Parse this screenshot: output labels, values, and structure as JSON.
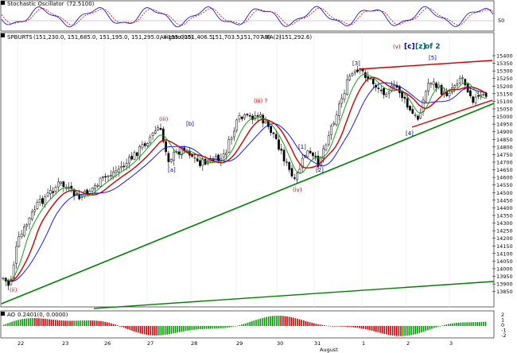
{
  "panels": {
    "stoch": {
      "title": "Stochastic Oscillator",
      "value": "(72.5100)",
      "levels": [
        "50"
      ],
      "value_color": "#cc0000"
    },
    "price": {
      "symbol": "SPBURTS",
      "ohlc": "(151,230.0, 151,685.0, 151,195.0, 151,295.0, +155.000)",
      "alligator_label": "Alligato",
      "alligator_values": [
        "(151,406.5,",
        "151,703.5,",
        "151,707.3)"
      ],
      "ama_label": "AMA(2)",
      "ama_value": "(151,292.6)",
      "top_annotation": {
        "v": "(v)",
        "c": "[c]",
        "z": "[z]",
        "of2": "of 2"
      }
    },
    "ao": {
      "title": "AO",
      "values": "0.2401(0, 0.0000)"
    }
  },
  "wave_labels": [
    {
      "text": "(ii)",
      "color": "#cc0000"
    },
    {
      "text": "(iii)",
      "color": "#cc0000"
    },
    {
      "text": "[a]",
      "color": "#000099"
    },
    {
      "text": "[b]",
      "color": "#000099"
    },
    {
      "text": "(iii) ?",
      "color": "#cc0000"
    },
    {
      "text": "(iv)",
      "color": "#cc0000"
    },
    {
      "text": "[1]",
      "color": "#000099"
    },
    {
      "text": "[2]",
      "color": "#000099"
    },
    {
      "text": "[3]",
      "color": "#000099"
    },
    {
      "text": "[4]",
      "color": "#000099"
    },
    {
      "text": "[5]",
      "color": "#000099"
    }
  ],
  "y_ticks": [
    "15400",
    "15350",
    "15300",
    "15250",
    "15200",
    "15150",
    "15100",
    "15050",
    "15000",
    "14950",
    "14900",
    "14850",
    "14800",
    "14750",
    "14700",
    "14650",
    "14600",
    "14550",
    "14500",
    "14450",
    "14400",
    "14350",
    "14300",
    "14250",
    "14200",
    "14150",
    "14100",
    "14050",
    "14000",
    "13950",
    "13900",
    "13850"
  ],
  "x_ticks": [
    "22",
    "23",
    "26",
    "27",
    "28",
    "29",
    "30",
    "31",
    "1",
    "2",
    "3",
    "5",
    "6"
  ],
  "x_month": "August",
  "stoch_ticks": [
    "50"
  ],
  "ao_ticks": [
    "2",
    "1",
    "0",
    "-1",
    "-2"
  ],
  "colors": {
    "bg": "#ffffff",
    "header": "#000080",
    "jaw": "#0000ff",
    "teeth": "#cc0000",
    "lips": "#009900",
    "trend": "#008000",
    "wedge": "#cc0000",
    "ao_up": "#009900",
    "ao_down": "#cc0000"
  }
}
